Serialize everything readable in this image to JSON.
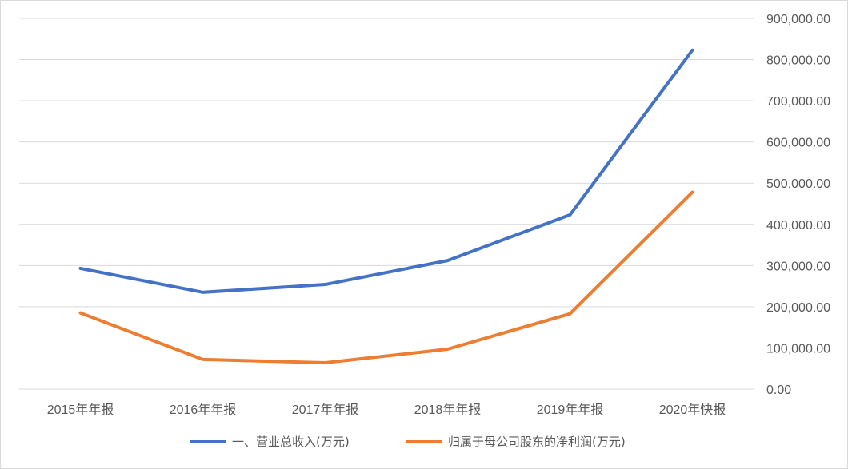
{
  "chart_data": {
    "type": "line",
    "categories": [
      "2015年年报",
      "2016年年报",
      "2017年年报",
      "2018年年报",
      "2019年年报",
      "2020年快报"
    ],
    "series": [
      {
        "name": "一、营业总收入(万元)",
        "color": "#4472C4",
        "values": [
          293000,
          235000,
          254000,
          312000,
          423000,
          823000
        ]
      },
      {
        "name": "归属于母公司股东的净利润(万元)",
        "color": "#ED7D31",
        "values": [
          185000,
          72000,
          64000,
          97000,
          183000,
          478000
        ]
      }
    ],
    "ylim": [
      0,
      900000
    ],
    "yticks": [
      0,
      100000,
      200000,
      300000,
      400000,
      500000,
      600000,
      700000,
      800000,
      900000
    ],
    "ytick_labels": [
      "0.00",
      "100,000.00",
      "200,000.00",
      "300,000.00",
      "400,000.00",
      "500,000.00",
      "600,000.00",
      "700,000.00",
      "800,000.00",
      "900,000.00"
    ],
    "y_axis_position": "right",
    "grid": true,
    "legend_position": "bottom"
  }
}
